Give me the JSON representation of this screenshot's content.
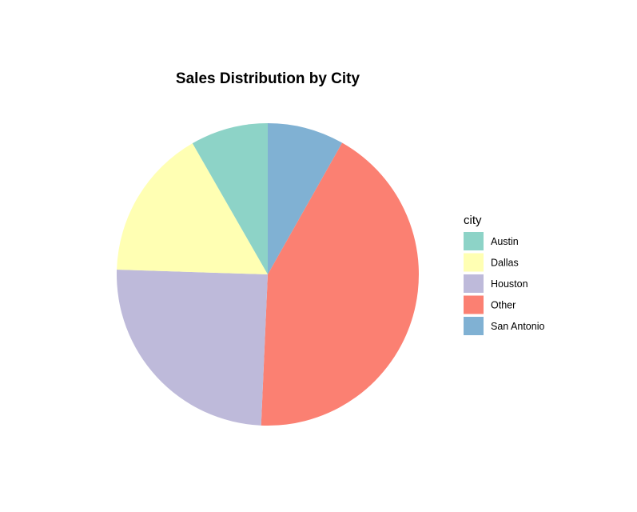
{
  "chart_data": {
    "type": "pie",
    "title": "Sales Distribution by City",
    "legend_title": "city",
    "legend_position": "right",
    "start_angle_deg": 0,
    "direction": "clockwise",
    "slices": [
      {
        "label": "San Antonio",
        "value": 8.2,
        "color": "#80B1D3"
      },
      {
        "label": "Other",
        "value": 42.5,
        "color": "#FB8072"
      },
      {
        "label": "Houston",
        "value": 24.8,
        "color": "#BEBADA"
      },
      {
        "label": "Dallas",
        "value": 16.2,
        "color": "#FFFFB3"
      },
      {
        "label": "Austin",
        "value": 8.3,
        "color": "#8DD3C7"
      }
    ],
    "legend_order": [
      "Austin",
      "Dallas",
      "Houston",
      "Other",
      "San Antonio"
    ]
  }
}
